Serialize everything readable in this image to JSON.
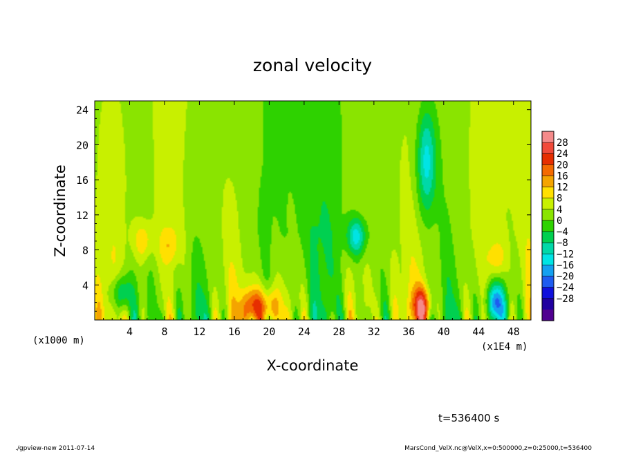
{
  "chart_data": {
    "type": "heatmap",
    "title": "zonal velocity",
    "xlabel": "X-coordinate",
    "ylabel": "Z-coordinate",
    "x_unit_note": "(x1E4 m)",
    "y_unit_note": "(x1000 m)",
    "xlim": [
      0,
      50
    ],
    "ylim": [
      0,
      25
    ],
    "x_ticks": [
      4,
      8,
      12,
      16,
      20,
      24,
      28,
      32,
      36,
      40,
      44,
      48
    ],
    "y_ticks": [
      4,
      8,
      12,
      16,
      20,
      24
    ],
    "colorbar": {
      "labels": [
        "28",
        "24",
        "20",
        "16",
        "12",
        "8",
        "4",
        "0",
        "−4",
        "−8",
        "−12",
        "−16",
        "−20",
        "−24",
        "−28"
      ],
      "levels": [
        32,
        28,
        24,
        20,
        16,
        12,
        8,
        4,
        0,
        -4,
        -8,
        -12,
        -16,
        -20,
        -24,
        -28,
        -32
      ],
      "colors": [
        "#f48a8a",
        "#f14a3a",
        "#e62e00",
        "#f46a00",
        "#f4a400",
        "#ffe000",
        "#c8f000",
        "#8ae400",
        "#2ed200",
        "#00d050",
        "#00d8a8",
        "#00e4e4",
        "#14a0f0",
        "#1e5cf0",
        "#1010dc",
        "#2000a0",
        "#500090"
      ]
    },
    "features": [
      {
        "x": 5.5,
        "z": 9,
        "v": 12
      },
      {
        "x": 8.5,
        "z": 8.5,
        "v": 10
      },
      {
        "x": 18,
        "z": 1.5,
        "v": 22
      },
      {
        "x": 20,
        "z": 1.5,
        "v": 18
      },
      {
        "x": 37.5,
        "z": 1.5,
        "v": 24
      },
      {
        "x": 46,
        "z": 7,
        "v": 12
      },
      {
        "x": 38,
        "z": 18,
        "v": -14
      },
      {
        "x": 30,
        "z": 9.5,
        "v": -14
      },
      {
        "x": 3,
        "z": 3,
        "v": -12
      },
      {
        "x": 46,
        "z": 2,
        "v": -16
      }
    ]
  },
  "annotation": {
    "time": "t=536400 s"
  },
  "footer": {
    "left": "./gpview-new   2011-07-14",
    "right": "MarsCond_VelX.nc@VelX,x=0:500000,z=0:25000,t=536400"
  }
}
